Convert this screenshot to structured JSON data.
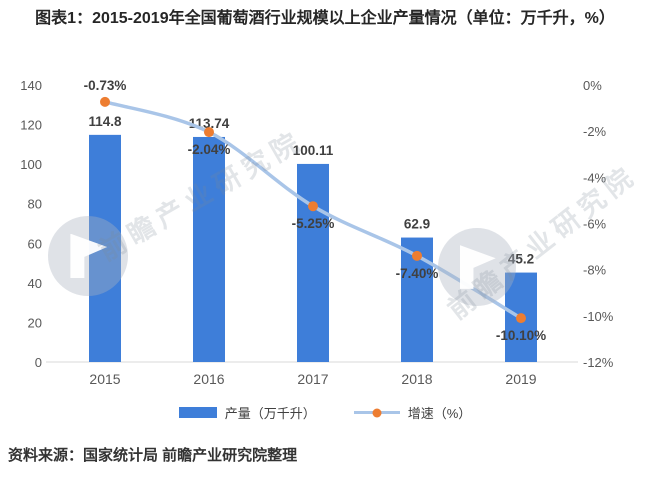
{
  "title": "图表1：2015-2019年全国葡萄酒行业规模以上企业产量情况（单位：万千升，%）",
  "source": "资料来源：国家统计局 前瞻产业研究院整理",
  "watermark": {
    "text": "前瞻产业研究院"
  },
  "colors": {
    "bar": "#3E7ED9",
    "line": "#A9C5E8",
    "marker": "#ED7D31",
    "axis_line": "#D9D9D9",
    "tick_text": "#595959",
    "data_label": "#404040",
    "title_text": "#262626"
  },
  "chart_data": {
    "type": "bar+line combo (dual axis)",
    "title": "图表1：2015-2019年全国葡萄酒行业规模以上企业产量情况（单位：万千升，%）",
    "categories": [
      "2015",
      "2016",
      "2017",
      "2018",
      "2019"
    ],
    "series": [
      {
        "name": "产量（万千升）",
        "type": "bar",
        "axis": "left",
        "values": [
          114.8,
          113.74,
          100.11,
          62.9,
          45.2
        ],
        "labels": [
          "114.8",
          "113.74",
          "100.11",
          "62.9",
          "45.2"
        ]
      },
      {
        "name": "增速（%）",
        "type": "line",
        "axis": "right",
        "values": [
          -0.73,
          -2.04,
          -5.25,
          -7.4,
          -10.1
        ],
        "labels": [
          "-0.73%",
          "-2.04%",
          "-5.25%",
          "-7.40%",
          "-10.10%"
        ],
        "label_placement": [
          "above",
          "below",
          "below",
          "below",
          "below"
        ]
      }
    ],
    "left_axis": {
      "min": 0,
      "max": 140,
      "step": 20,
      "ticks_top_to_bottom": [
        "140",
        "120",
        "100",
        "80",
        "60",
        "40",
        "20",
        "0"
      ]
    },
    "right_axis": {
      "min": -12,
      "max": 0,
      "step": 2,
      "ticks_top_to_bottom": [
        "0%",
        "-2%",
        "-4%",
        "-6%",
        "-8%",
        "-10%",
        "-12%"
      ]
    },
    "grid": false,
    "legend_position": "bottom"
  }
}
